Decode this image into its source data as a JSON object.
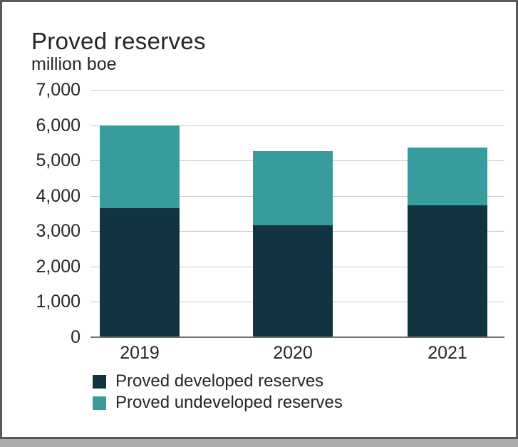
{
  "page": {
    "background_color": "#ACACAC",
    "card_border_color": "#58595B",
    "card_background_color": "#FFFFFF"
  },
  "colors": {
    "developed": "#123340",
    "undeveloped": "#389B9D",
    "gridline": "#C9C9C9",
    "axis_line": "#6F6F6F",
    "text": "#262626"
  },
  "chart_data": {
    "type": "bar",
    "stacked": true,
    "title": "Proved reserves",
    "subtitle": "million boe",
    "unit": "million boe",
    "categories": [
      "2019",
      "2020",
      "2021"
    ],
    "series": [
      {
        "name": "Proved developed reserves",
        "color": "#123340",
        "values": [
          3650,
          3170,
          3740
        ]
      },
      {
        "name": "Proved undeveloped reserves",
        "color": "#389B9D",
        "values": [
          2350,
          2090,
          1620
        ]
      }
    ],
    "stack_totals": [
      6000,
      5260,
      5360
    ],
    "y_axis": {
      "min": 0,
      "max": 7000,
      "tick_step": 1000,
      "tick_labels": [
        "0",
        "1,000",
        "2,000",
        "3,000",
        "4,000",
        "5,000",
        "6,000",
        "7,000"
      ]
    },
    "x_axis": {
      "tick_labels": [
        "2019",
        "2020",
        "2021"
      ]
    },
    "grid": "horizontal",
    "legend_position": "bottom-left"
  }
}
